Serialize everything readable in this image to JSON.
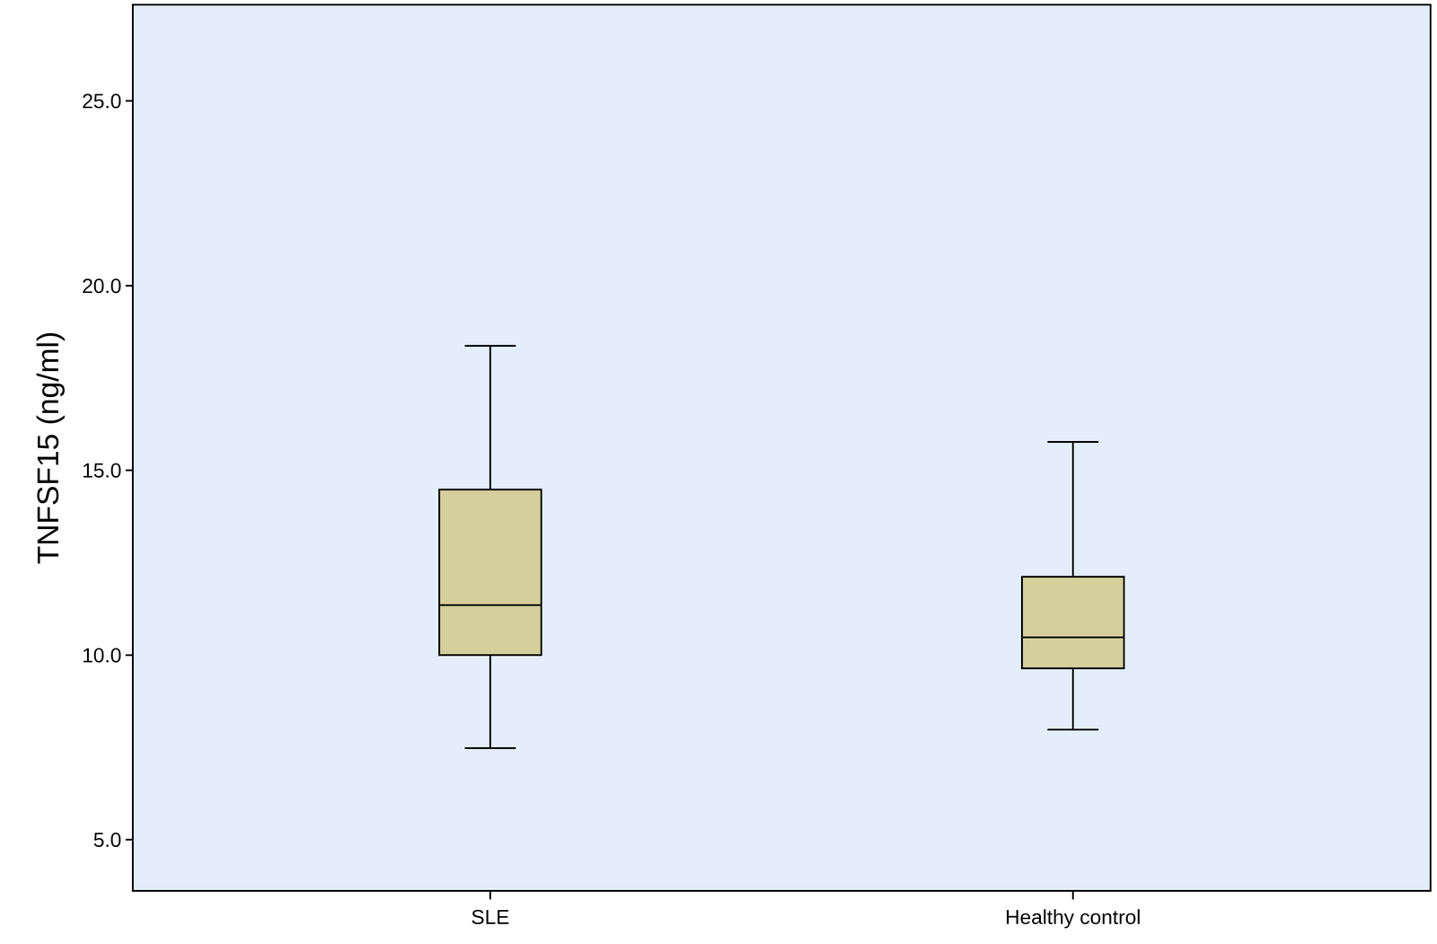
{
  "chart_data": {
    "type": "box",
    "ylabel": "TNFSF15 (ng/ml)",
    "categories": [
      "SLE",
      "Healthy control"
    ],
    "lower_whisker": [
      7.48,
      7.98
    ],
    "q1": [
      10.0,
      9.64
    ],
    "median": [
      11.35,
      10.48
    ],
    "q3": [
      14.48,
      12.12
    ],
    "upper_whisker": [
      18.37,
      15.77
    ],
    "color": "#d4cf9b",
    "ylim": [
      3.64,
      27.58
    ],
    "yticks": [
      {
        "value": 5,
        "label": "5.0"
      },
      {
        "value": 10,
        "label": "10.0"
      },
      {
        "value": 15,
        "label": "15.0"
      },
      {
        "value": 20,
        "label": "20.0"
      },
      {
        "value": 25,
        "label": "25.0"
      }
    ],
    "grid": false
  }
}
